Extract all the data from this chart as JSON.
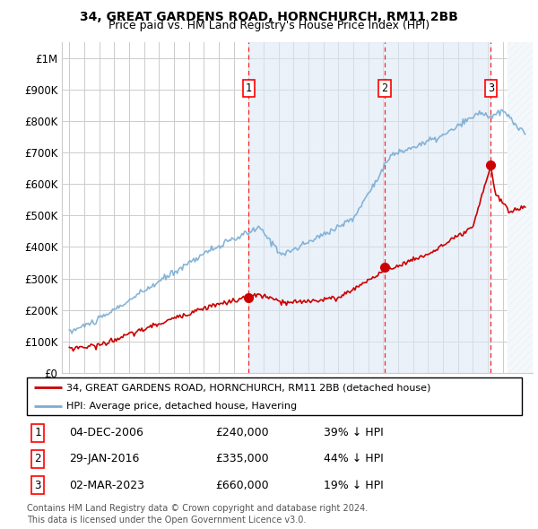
{
  "title": "34, GREAT GARDENS ROAD, HORNCHURCH, RM11 2BB",
  "subtitle": "Price paid vs. HM Land Registry's House Price Index (HPI)",
  "ylim": [
    0,
    1050000
  ],
  "yticks": [
    0,
    100000,
    200000,
    300000,
    400000,
    500000,
    600000,
    700000,
    800000,
    900000,
    1000000
  ],
  "ytick_labels": [
    "£0",
    "£100K",
    "£200K",
    "£300K",
    "£400K",
    "£500K",
    "£600K",
    "£700K",
    "£800K",
    "£900K",
    "£1M"
  ],
  "hpi_color": "#7aadd4",
  "price_color": "#cc0000",
  "transactions": [
    {
      "label": "1",
      "date": "04-DEC-2006",
      "price": 240000,
      "hpi_pct": "39% ↓ HPI",
      "x_year": 2007.0
    },
    {
      "label": "2",
      "date": "29-JAN-2016",
      "price": 335000,
      "hpi_pct": "44% ↓ HPI",
      "x_year": 2016.1
    },
    {
      "label": "3",
      "date": "02-MAR-2023",
      "price": 660000,
      "hpi_pct": "19% ↓ HPI",
      "x_year": 2023.2
    }
  ],
  "legend_property_label": "34, GREAT GARDENS ROAD, HORNCHURCH, RM11 2BB (detached house)",
  "legend_hpi_label": "HPI: Average price, detached house, Havering",
  "footnote": "Contains HM Land Registry data © Crown copyright and database right 2024.\nThis data is licensed under the Open Government Licence v3.0.",
  "xlim": [
    1994.5,
    2026.0
  ],
  "hatch_start": 2024.3,
  "background_hpi": "#dce9f5",
  "grid_color": "#cccccc",
  "title_fontsize": 10,
  "subtitle_fontsize": 9
}
